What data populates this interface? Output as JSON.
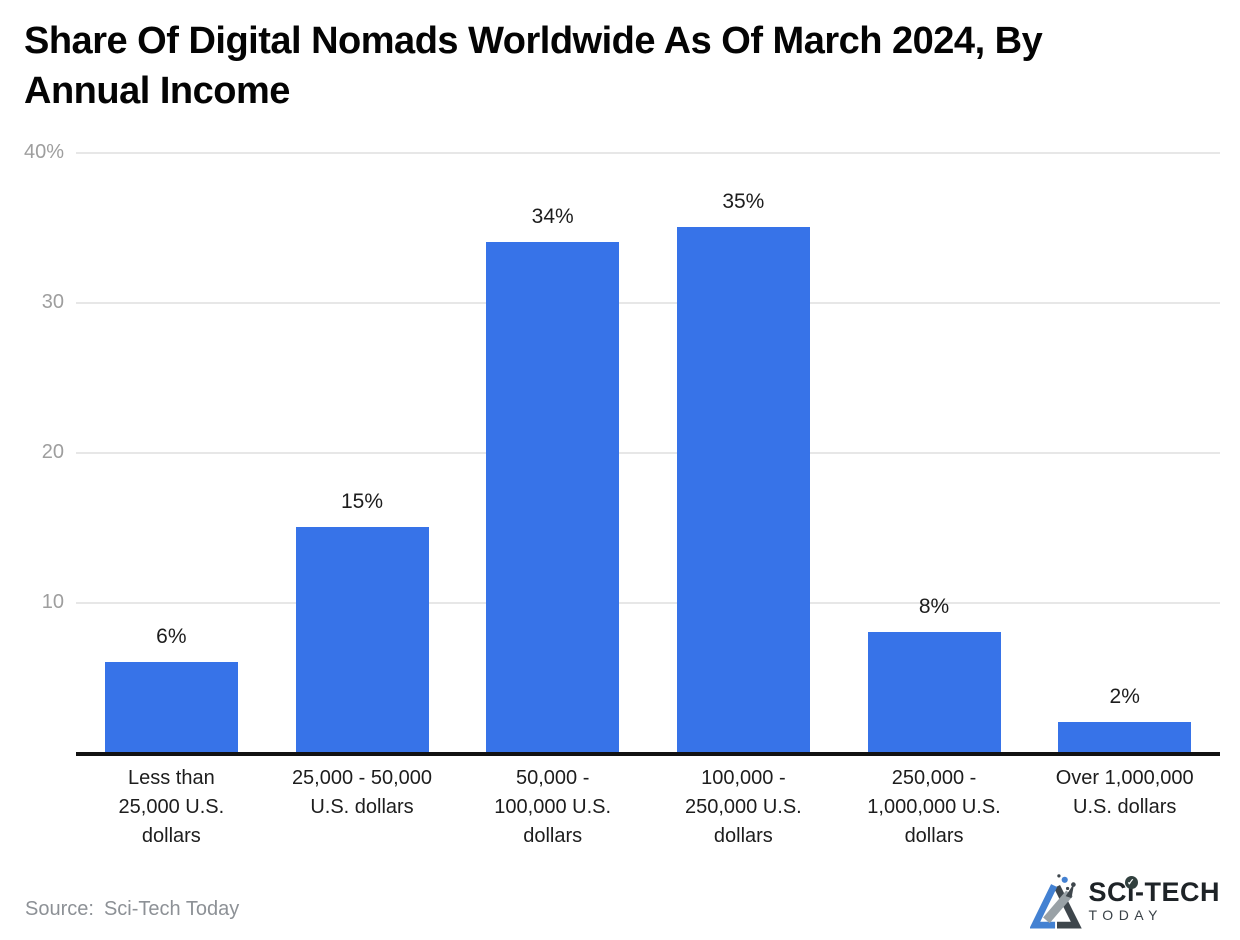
{
  "header": {
    "title_lines": [
      "Share Of Digital Nomads Worldwide As Of March 2024, By",
      "Annual Income"
    ]
  },
  "chart_data": {
    "type": "bar",
    "title": "Share Of Digital Nomads Worldwide As Of March 2024, By Annual Income",
    "categories": [
      "Less than 25,000 U.S. dollars",
      "25,000 - 50,000 U.S. dollars",
      "50,000 - 100,000 U.S. dollars",
      "100,000 - 250,000 U.S. dollars",
      "250,000 - 1,000,000 U.S. dollars",
      "Over 1,000,000 U.S. dollars"
    ],
    "xtick_lines": [
      [
        "Less than",
        "25,000 U.S.",
        "dollars"
      ],
      [
        "25,000 - 50,000",
        "U.S. dollars"
      ],
      [
        "50,000 -",
        "100,000 U.S.",
        "dollars"
      ],
      [
        "100,000 -",
        "250,000 U.S.",
        "dollars"
      ],
      [
        "250,000 -",
        "1,000,000 U.S.",
        "dollars"
      ],
      [
        "Over 1,000,000",
        "U.S. dollars"
      ]
    ],
    "values": [
      6,
      15,
      34,
      35,
      8,
      2
    ],
    "value_labels": [
      "6%",
      "15%",
      "34%",
      "35%",
      "8%",
      "2%"
    ],
    "xlabel": "",
    "ylabel": "",
    "ylim": [
      0,
      40
    ],
    "yticks": [
      {
        "value": 40,
        "label": "40%"
      },
      {
        "value": 30,
        "label": "30"
      },
      {
        "value": 20,
        "label": "20"
      },
      {
        "value": 10,
        "label": "10"
      }
    ],
    "grid": true,
    "legend": false,
    "bar_color": "#3773e8"
  },
  "footer": {
    "source_label": "Source:",
    "source_name": "Sci-Tech Today",
    "logo": {
      "title": "SCi-TECH",
      "subtitle": "TODAY",
      "check_glyph": "✓"
    }
  },
  "colors": {
    "bar": "#3773e8",
    "gridline": "#e7e7e7",
    "axis": "#121212",
    "ytick_text": "#9e9e9e",
    "label_text": "#1d1d1d",
    "muted_text": "#8d9196",
    "logo_blue": "#4381d2",
    "logo_dark": "#3e464c"
  }
}
